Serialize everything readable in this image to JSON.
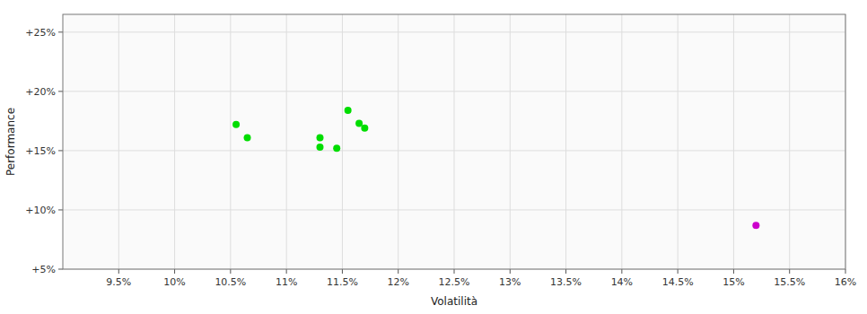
{
  "chart_data": {
    "type": "scatter",
    "xlabel": "Volatilità",
    "ylabel": "Performance",
    "grid": true,
    "xlim": [
      0.09,
      0.16
    ],
    "ylim": [
      0.05,
      0.265
    ],
    "xticks": [
      {
        "value": 0.095,
        "label": "9.5%"
      },
      {
        "value": 0.1,
        "label": "10%"
      },
      {
        "value": 0.105,
        "label": "10.5%"
      },
      {
        "value": 0.11,
        "label": "11%"
      },
      {
        "value": 0.115,
        "label": "11.5%"
      },
      {
        "value": 0.12,
        "label": "12%"
      },
      {
        "value": 0.125,
        "label": "12.5%"
      },
      {
        "value": 0.13,
        "label": "13%"
      },
      {
        "value": 0.135,
        "label": "13.5%"
      },
      {
        "value": 0.14,
        "label": "14%"
      },
      {
        "value": 0.145,
        "label": "14.5%"
      },
      {
        "value": 0.15,
        "label": "15%"
      },
      {
        "value": 0.155,
        "label": "15.5%"
      },
      {
        "value": 0.16,
        "label": "16%"
      }
    ],
    "yticks": [
      {
        "value": 0.05,
        "label": "+5%"
      },
      {
        "value": 0.1,
        "label": "+10%"
      },
      {
        "value": 0.15,
        "label": "+15%"
      },
      {
        "value": 0.2,
        "label": "+20%"
      },
      {
        "value": 0.25,
        "label": "+25%"
      }
    ],
    "series": [
      {
        "color": "#00dd00",
        "x": [
          0.1055,
          0.1065,
          0.113,
          0.113,
          0.1145,
          0.1155,
          0.1165,
          0.117
        ],
        "values": [
          0.172,
          0.161,
          0.161,
          0.153,
          0.152,
          0.184,
          0.173,
          0.169
        ]
      },
      {
        "color": "#cc00cc",
        "x": [
          0.152
        ],
        "values": [
          0.087
        ]
      }
    ]
  }
}
